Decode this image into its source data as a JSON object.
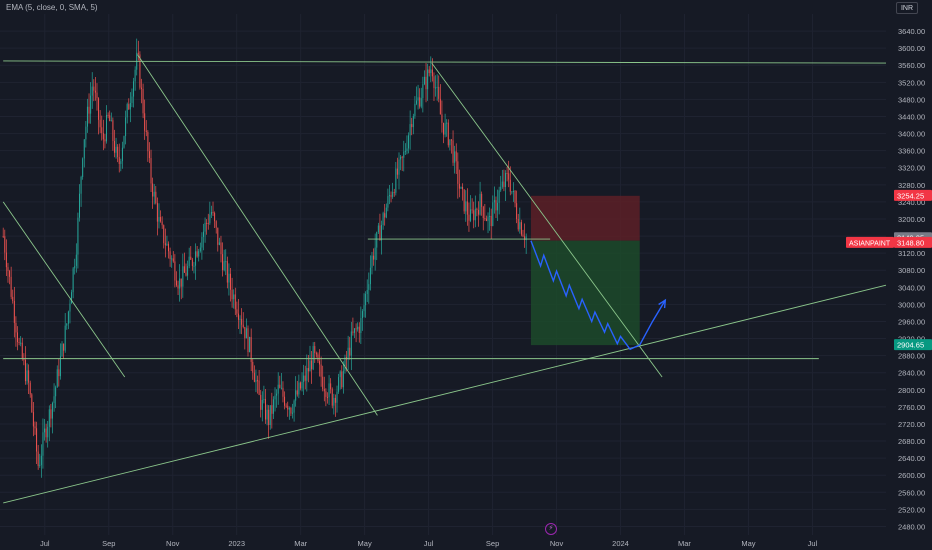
{
  "indicator_label": "EMA (5, close, 0, SMA, 5)",
  "currency": "INR",
  "colors": {
    "background": "#161a25",
    "candle_up": "#26a69a",
    "candle_down": "#ef5350",
    "trendline": "#8bc68b",
    "arrow": "#2962ff",
    "stop_zone": "#5c2027",
    "target_zone": "#1c4a2a"
  },
  "chart_data": {
    "type": "candlestick",
    "title": "",
    "ylim": [
      2460,
      3680
    ],
    "y_ticks": [
      2480,
      2520,
      2560,
      2600,
      2640,
      2680,
      2720,
      2760,
      2800,
      2840,
      2880,
      2920,
      2960,
      3000,
      3040,
      3080,
      3120,
      3160,
      3200,
      3240,
      3280,
      3320,
      3360,
      3400,
      3440,
      3480,
      3520,
      3560,
      3600,
      3640
    ],
    "y_tick_labels": [
      "2480.00",
      "2520.00",
      "2560.00",
      "2600.00",
      "2640.00",
      "2680.00",
      "2720.00",
      "2760.00",
      "2800.00",
      "2840.00",
      "2880.00",
      "2920.00",
      "2960.00",
      "3000.00",
      "3040.00",
      "3080.00",
      "3120.00",
      "3160.00",
      "3200.00",
      "3240.00",
      "3280.00",
      "3320.00",
      "3360.00",
      "3400.00",
      "3440.00",
      "3480.00",
      "3520.00",
      "3560.00",
      "3600.00",
      "3640.00"
    ],
    "x_labels": [
      "Jul",
      "Sep",
      "Nov",
      "2023",
      "Mar",
      "May",
      "Jul",
      "Sep",
      "Nov",
      "2024",
      "Mar",
      "May",
      "Jul"
    ],
    "x_label_pos": [
      0,
      2,
      4,
      6,
      8,
      10,
      12,
      14,
      16,
      18,
      20,
      22,
      24
    ],
    "xlim": [
      -1.4,
      26.3
    ],
    "price_path": [
      [
        -1.3,
        3160
      ],
      [
        -0.8,
        2900
      ],
      [
        -0.5,
        2810
      ],
      [
        -0.2,
        2620
      ],
      [
        0.0,
        2700
      ],
      [
        0.3,
        2790
      ],
      [
        0.7,
        2960
      ],
      [
        1.0,
        3150
      ],
      [
        1.2,
        3380
      ],
      [
        1.5,
        3520
      ],
      [
        1.8,
        3380
      ],
      [
        2.0,
        3440
      ],
      [
        2.3,
        3320
      ],
      [
        2.6,
        3460
      ],
      [
        2.9,
        3580
      ],
      [
        3.3,
        3300
      ],
      [
        3.6,
        3180
      ],
      [
        3.9,
        3120
      ],
      [
        4.2,
        3050
      ],
      [
        4.6,
        3100
      ],
      [
        4.9,
        3160
      ],
      [
        5.2,
        3220
      ],
      [
        5.5,
        3120
      ],
      [
        5.8,
        3040
      ],
      [
        6.1,
        2980
      ],
      [
        6.4,
        2900
      ],
      [
        6.7,
        2780
      ],
      [
        7.0,
        2730
      ],
      [
        7.3,
        2800
      ],
      [
        7.7,
        2760
      ],
      [
        8.1,
        2820
      ],
      [
        8.4,
        2880
      ],
      [
        8.7,
        2820
      ],
      [
        9.0,
        2780
      ],
      [
        9.3,
        2830
      ],
      [
        9.6,
        2920
      ],
      [
        9.9,
        2960
      ],
      [
        10.2,
        3100
      ],
      [
        10.5,
        3180
      ],
      [
        10.8,
        3260
      ],
      [
        11.2,
        3340
      ],
      [
        11.5,
        3450
      ],
      [
        11.8,
        3500
      ],
      [
        12.1,
        3560
      ],
      [
        12.4,
        3430
      ],
      [
        12.7,
        3380
      ],
      [
        13.0,
        3260
      ],
      [
        13.3,
        3200
      ],
      [
        13.6,
        3240
      ],
      [
        13.9,
        3190
      ],
      [
        14.2,
        3260
      ],
      [
        14.5,
        3300
      ],
      [
        14.8,
        3200
      ],
      [
        15.1,
        3150
      ]
    ],
    "trendlines": [
      {
        "name": "top-channel-line",
        "points": [
          [
            -1.3,
            3570
          ],
          [
            26.3,
            3565
          ]
        ]
      },
      {
        "name": "support-line-2880",
        "points": [
          [
            -1.3,
            2873
          ],
          [
            24.2,
            2873
          ]
        ]
      },
      {
        "name": "neckline-3150",
        "points": [
          [
            10.1,
            3153
          ],
          [
            15.8,
            3153
          ]
        ]
      },
      {
        "name": "rising-support",
        "points": [
          [
            -1.3,
            2535
          ],
          [
            26.3,
            3045
          ]
        ]
      },
      {
        "name": "falling-resistance-1",
        "points": [
          [
            -1.3,
            3240
          ],
          [
            2.5,
            2830
          ]
        ]
      },
      {
        "name": "falling-resistance-2",
        "points": [
          [
            2.9,
            3585
          ],
          [
            10.4,
            2740
          ]
        ]
      },
      {
        "name": "falling-resistance-3",
        "points": [
          [
            12.1,
            3565
          ],
          [
            19.3,
            2830
          ]
        ]
      }
    ],
    "position": {
      "entry": 3149.25,
      "stop": 3254.25,
      "target": 2904.65,
      "x_start": 15.2,
      "x_end": 18.6
    },
    "projection_path": [
      [
        15.2,
        3149
      ],
      [
        15.5,
        3090
      ],
      [
        15.6,
        3115
      ],
      [
        15.9,
        3055
      ],
      [
        16.0,
        3078
      ],
      [
        16.3,
        3020
      ],
      [
        16.4,
        3045
      ],
      [
        16.7,
        2990
      ],
      [
        16.8,
        3012
      ],
      [
        17.1,
        2960
      ],
      [
        17.2,
        2982
      ],
      [
        17.5,
        2935
      ],
      [
        17.6,
        2955
      ],
      [
        17.9,
        2908
      ],
      [
        18.0,
        2925
      ],
      [
        18.3,
        2895
      ],
      [
        18.6,
        2905
      ],
      [
        19.0,
        2960
      ],
      [
        19.4,
        3010
      ]
    ],
    "price_tags": [
      {
        "label": "3254.25",
        "value": 3254.25,
        "color": "#f23645",
        "kind": "stop-price-tag"
      },
      {
        "label": "3149.25",
        "value": 3155,
        "color": "#787b86",
        "kind": "entry-price-tag"
      },
      {
        "label": "3148.80",
        "value": 3144,
        "color": "#f23645",
        "kind": "last-price-tag"
      },
      {
        "label": "2904.65",
        "value": 2904.65,
        "color": "#089981",
        "kind": "target-price-tag"
      }
    ],
    "symbol_tag": "ASIANPAINT"
  }
}
